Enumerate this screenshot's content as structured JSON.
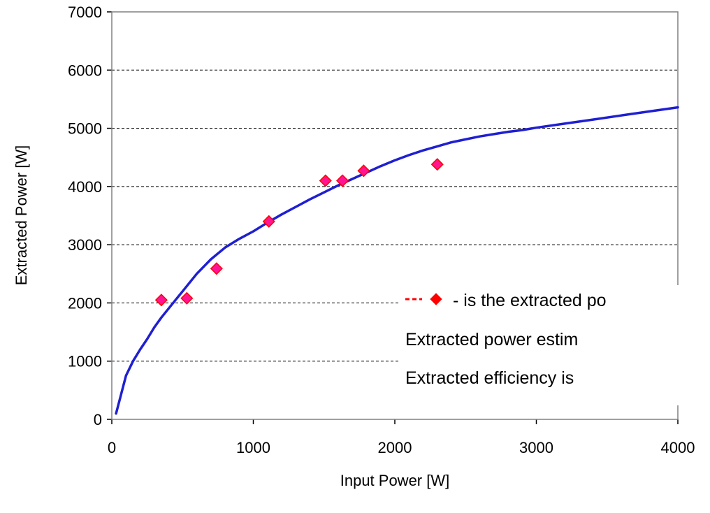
{
  "chart_data": {
    "type": "scatter",
    "xlabel": "Input Power [W]",
    "ylabel": "Extracted Power [W]",
    "xlim": [
      0,
      4000
    ],
    "ylim": [
      0,
      7000
    ],
    "xticks": [
      "0",
      "1000",
      "2000",
      "3000",
      "4000"
    ],
    "yticks": [
      "0",
      "1000",
      "2000",
      "3000",
      "4000",
      "5000",
      "6000",
      "7000"
    ],
    "grid": {
      "horizontal": true,
      "style": "dashed"
    },
    "series": [
      {
        "kind": "points",
        "marker": "diamond",
        "color": "#ff1493",
        "edge_color": "#ff0000",
        "x": [
          350,
          530,
          740,
          1110,
          1510,
          1630,
          1780,
          2300
        ],
        "y": [
          2050,
          2080,
          2590,
          3400,
          4100,
          4100,
          4270,
          4380
        ]
      },
      {
        "kind": "line",
        "color": "#1f1fd2",
        "x": [
          30,
          60,
          100,
          150,
          200,
          250,
          300,
          350,
          400,
          450,
          500,
          600,
          700,
          800,
          900,
          1000,
          1100,
          1200,
          1300,
          1400,
          1500,
          1600,
          1700,
          1800,
          1900,
          2000,
          2100,
          2200,
          2300,
          2400,
          2500,
          2600,
          2700,
          2800,
          2900,
          3000,
          3200,
          3400,
          3600,
          3800,
          4000
        ],
        "y": [
          100,
          380,
          750,
          1000,
          1200,
          1380,
          1580,
          1750,
          1900,
          2050,
          2200,
          2500,
          2750,
          2950,
          3100,
          3230,
          3380,
          3520,
          3650,
          3780,
          3900,
          4020,
          4130,
          4240,
          4350,
          4450,
          4540,
          4620,
          4690,
          4760,
          4810,
          4860,
          4900,
          4940,
          4970,
          5010,
          5080,
          5150,
          5220,
          5290,
          5360
        ]
      }
    ],
    "legend": {
      "placement": "lower-right",
      "lines": [
        "- is the extracted po",
        "Extracted power estim",
        "Extracted efficiency is"
      ]
    }
  }
}
